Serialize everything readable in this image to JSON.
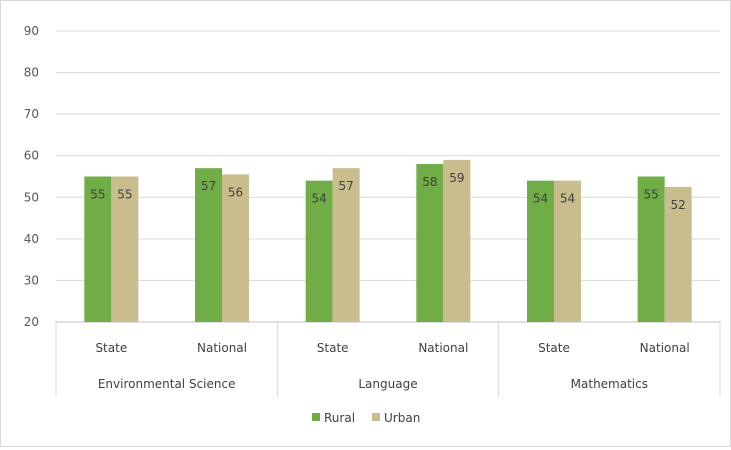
{
  "chart_data": {
    "type": "bar",
    "title": "",
    "xlabel": "",
    "ylabel": "",
    "ylim": [
      20,
      90
    ],
    "yticks": [
      20,
      30,
      40,
      50,
      60,
      70,
      80,
      90
    ],
    "grid": true,
    "legend_position": "bottom",
    "groups": [
      {
        "label": "Environmental Science",
        "categories": [
          "State",
          "National"
        ]
      },
      {
        "label": "Language",
        "categories": [
          "State",
          "National"
        ]
      },
      {
        "label": "Mathematics",
        "categories": [
          "State",
          "National"
        ]
      }
    ],
    "series": [
      {
        "name": "Rural",
        "color": "#70ad47",
        "values": [
          55,
          57,
          54,
          58,
          54,
          55
        ],
        "labels": [
          "55",
          "57",
          "54",
          "58",
          "54",
          "55"
        ]
      },
      {
        "name": "Urban",
        "color": "#c9bd8e",
        "values": [
          55,
          55.5,
          57,
          59,
          54,
          52.5
        ],
        "labels": [
          "55",
          "56",
          "57",
          "59",
          "54",
          "52"
        ]
      }
    ]
  }
}
